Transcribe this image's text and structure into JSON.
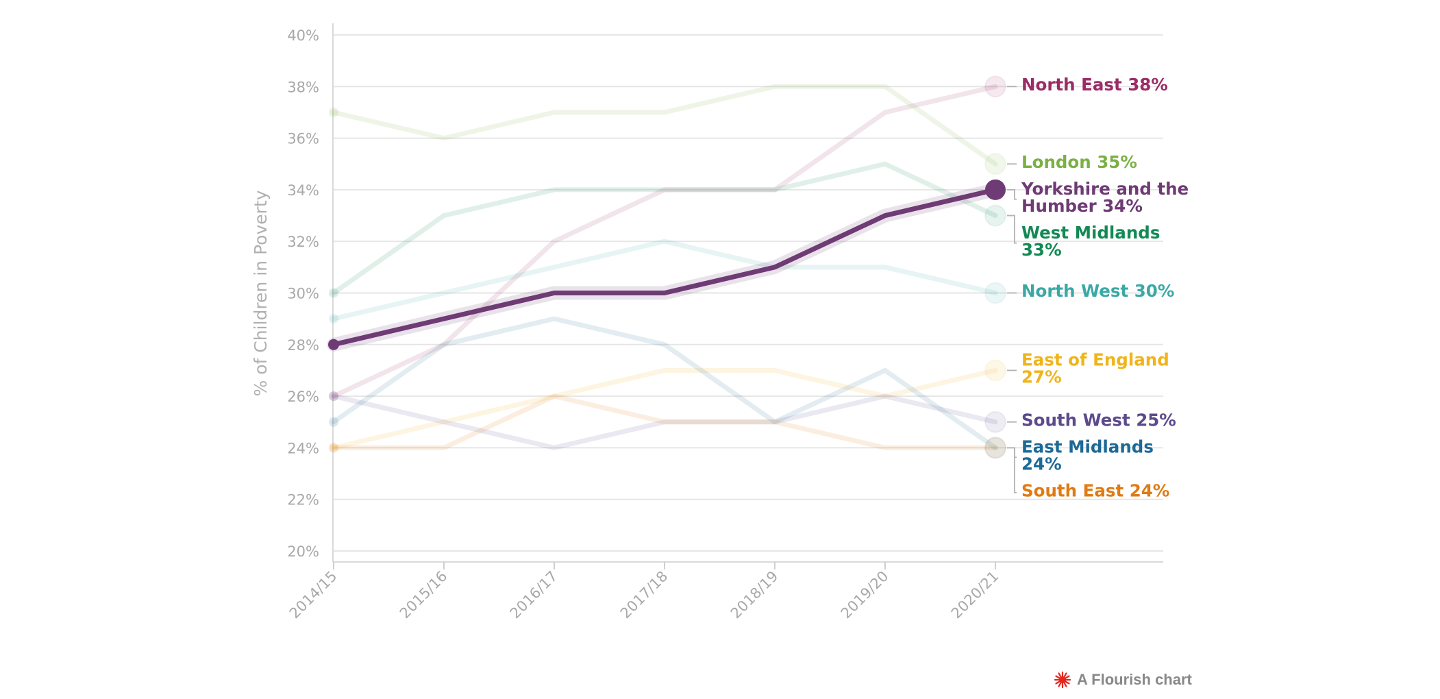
{
  "chart_data": {
    "type": "line",
    "title": "",
    "xlabel": "",
    "ylabel": "% of Children in Poverty",
    "categories": [
      "2014/15",
      "2015/16",
      "2016/17",
      "2017/18",
      "2018/19",
      "2019/20",
      "2020/21"
    ],
    "ylim": [
      20,
      40
    ],
    "yticks": [
      20,
      22,
      24,
      26,
      28,
      30,
      32,
      34,
      36,
      38,
      40
    ],
    "ytick_suffix": "%",
    "grid": true,
    "highlighted_series": "Yorkshire and the Humber",
    "series": [
      {
        "name": "North East",
        "color": "#9b2c65",
        "values": [
          26,
          28,
          32,
          34,
          34,
          37,
          38
        ],
        "label_lines": [
          "North East 38%"
        ]
      },
      {
        "name": "London",
        "color": "#7bb045",
        "values": [
          37,
          36,
          37,
          37,
          38,
          38,
          35
        ],
        "label_lines": [
          "London 35%"
        ]
      },
      {
        "name": "Yorkshire and the Humber",
        "color": "#6e3b74",
        "values": [
          28,
          29,
          30,
          30,
          31,
          33,
          34
        ],
        "label_lines": [
          "Yorkshire and the",
          "Humber 34%"
        ]
      },
      {
        "name": "West Midlands",
        "color": "#138954",
        "values": [
          30,
          33,
          34,
          34,
          34,
          35,
          33
        ],
        "label_lines": [
          "West Midlands",
          "33%"
        ]
      },
      {
        "name": "North West",
        "color": "#3aa9a6",
        "values": [
          29,
          30,
          31,
          32,
          31,
          31,
          30
        ],
        "label_lines": [
          "North West 30%"
        ]
      },
      {
        "name": "East of England",
        "color": "#f0b41a",
        "values": [
          24,
          25,
          26,
          27,
          27,
          26,
          27
        ],
        "label_lines": [
          "East of England",
          "27%"
        ]
      },
      {
        "name": "South West",
        "color": "#5c4a8c",
        "values": [
          26,
          25,
          24,
          25,
          25,
          26,
          25
        ],
        "label_lines": [
          "South West 25%"
        ]
      },
      {
        "name": "East Midlands",
        "color": "#1d6996",
        "values": [
          25,
          28,
          29,
          28,
          25,
          27,
          24
        ],
        "label_lines": [
          "East Midlands",
          "24%"
        ]
      },
      {
        "name": "South East",
        "color": "#e07b12",
        "values": [
          24,
          24,
          26,
          25,
          25,
          24,
          24
        ],
        "label_lines": [
          "South East 24%"
        ]
      }
    ]
  },
  "credit": {
    "text": "A Flourish chart",
    "icon": "flourish-logo-icon",
    "icon_color": "#e4261d"
  }
}
